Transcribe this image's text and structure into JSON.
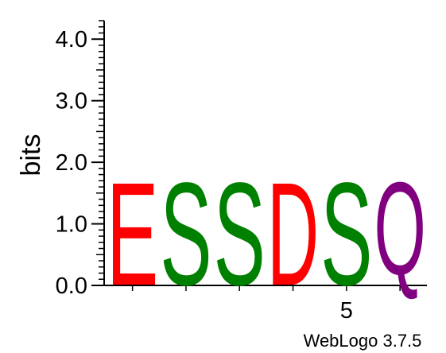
{
  "chart_data": {
    "type": "sequence-logo",
    "ylabel": "bits",
    "ylim": [
      0,
      4.3
    ],
    "y_ticks": [
      "0.0",
      "1.0",
      "2.0",
      "3.0",
      "4.0"
    ],
    "y_tick_values": [
      0,
      1,
      2,
      3,
      4
    ],
    "positions": [
      1,
      2,
      3,
      4,
      5,
      6
    ],
    "x_tick_labels": [
      "",
      "",
      "",
      "",
      "5",
      ""
    ],
    "letters": [
      {
        "position": 1,
        "letter": "E",
        "bits": 1.75,
        "color": "#ff0000"
      },
      {
        "position": 2,
        "letter": "S",
        "bits": 1.75,
        "color": "#008000"
      },
      {
        "position": 3,
        "letter": "S",
        "bits": 1.75,
        "color": "#008000"
      },
      {
        "position": 4,
        "letter": "D",
        "bits": 1.75,
        "color": "#ff0000"
      },
      {
        "position": 5,
        "letter": "S",
        "bits": 1.75,
        "color": "#008000"
      },
      {
        "position": 6,
        "letter": "Q",
        "bits": 1.75,
        "color": "#800080"
      }
    ]
  },
  "footer": "WebLogo 3.7.5"
}
